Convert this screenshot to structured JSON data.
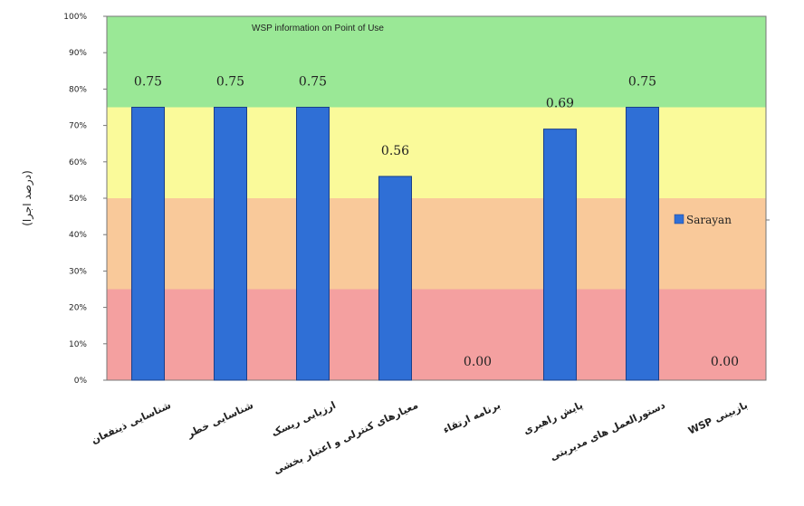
{
  "chart_data": {
    "type": "bar",
    "ylabel": "(درصد اجرا)",
    "banner": "WSP information on Point of Use",
    "ylim": [
      0,
      1
    ],
    "y_ticks": [
      "0%",
      "10%",
      "20%",
      "30%",
      "40%",
      "50%",
      "60%",
      "70%",
      "80%",
      "90%",
      "100%"
    ],
    "categories": [
      "شناسایی ذینفعان",
      "شناسایی خطر",
      "ارزیابی ریسک",
      "معیارهای کنترلی و اعتبار بخشی",
      "برنامه ارتقاء",
      "پایش راهبری",
      "دستورالعمل های مدیریتی",
      "WSP بازبینی"
    ],
    "series": [
      {
        "name": "Sarayan",
        "values": [
          0.75,
          0.75,
          0.75,
          0.56,
          0.0,
          0.69,
          0.75,
          0.0
        ],
        "labels": [
          "0.75",
          "0.75",
          "0.75",
          "0.56",
          "0.00",
          "0.69",
          "0.75",
          "0.00"
        ],
        "color": "#2f6fd6"
      }
    ],
    "bands": [
      {
        "from": 0.0,
        "to": 0.25,
        "color": "#f4a0a0"
      },
      {
        "from": 0.25,
        "to": 0.5,
        "color": "#f9c99a"
      },
      {
        "from": 0.5,
        "to": 0.75,
        "color": "#fafa9a"
      },
      {
        "from": 0.75,
        "to": 1.0,
        "color": "#9ae896"
      }
    ],
    "legend_position": "right",
    "grid": false
  }
}
